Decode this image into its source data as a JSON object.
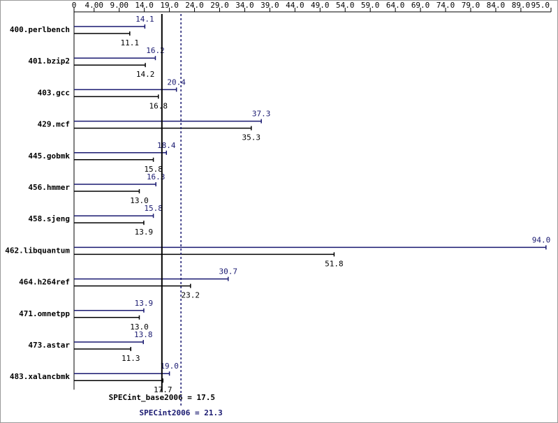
{
  "chart_data": {
    "type": "bar",
    "orientation": "horizontal",
    "categories": [
      "400.perlbench",
      "401.bzip2",
      "403.gcc",
      "429.mcf",
      "445.gobmk",
      "456.hmmer",
      "458.sjeng",
      "462.libquantum",
      "464.h264ref",
      "471.omnetpp",
      "473.astar",
      "483.xalancbmk"
    ],
    "series": [
      {
        "color": "#191970",
        "values": [
          14.1,
          16.2,
          20.4,
          37.3,
          18.4,
          16.3,
          15.8,
          94.0,
          30.7,
          13.9,
          13.8,
          19.0
        ],
        "value_labels": [
          "14.1",
          "16.2",
          "20.4",
          "37.3",
          "18.4",
          "16.3",
          "15.8",
          "94.0",
          "30.7",
          "13.9",
          "13.8",
          "19.0"
        ]
      },
      {
        "color": "#000000",
        "values": [
          11.1,
          14.2,
          16.8,
          35.3,
          15.8,
          13.0,
          13.9,
          51.8,
          23.2,
          13.0,
          11.3,
          17.7
        ],
        "value_labels": [
          "11.1",
          "14.2",
          "16.8",
          "35.3",
          "15.8",
          "13.0",
          "13.9",
          "51.8",
          "23.2",
          "13.0",
          "11.3",
          "17.7"
        ]
      }
    ],
    "xlim": [
      0,
      95.0
    ],
    "xticks": [
      0,
      {
        "value": 4,
        "label": "4.00"
      },
      {
        "value": 9,
        "label": "9.00"
      },
      {
        "value": 14,
        "label": "14.0"
      },
      {
        "value": 19,
        "label": "19.0"
      },
      {
        "value": 24,
        "label": "24.0"
      },
      {
        "value": 29,
        "label": "29.0"
      },
      {
        "value": 34,
        "label": "34.0"
      },
      {
        "value": 39,
        "label": "39.0"
      },
      {
        "value": 44,
        "label": "44.0"
      },
      {
        "value": 49,
        "label": "49.0"
      },
      {
        "value": 54,
        "label": "54.0"
      },
      {
        "value": 59,
        "label": "59.0"
      },
      {
        "value": 64,
        "label": "64.0"
      },
      {
        "value": 69,
        "label": "69.0"
      },
      {
        "value": 74,
        "label": "74.0"
      },
      {
        "value": 79,
        "label": "79.0"
      },
      {
        "value": 84,
        "label": "84.0"
      },
      {
        "value": 89,
        "label": "89.0"
      },
      {
        "value": 95,
        "label": "95.0"
      }
    ],
    "reference_lines": [
      {
        "text": "SPECint_base2006 = 17.5",
        "value": 17.5,
        "color": "#000000",
        "dashed": false
      },
      {
        "text": "SPECint2006 = 21.3",
        "value": 21.3,
        "color": "#191970",
        "dashed": true
      }
    ]
  }
}
